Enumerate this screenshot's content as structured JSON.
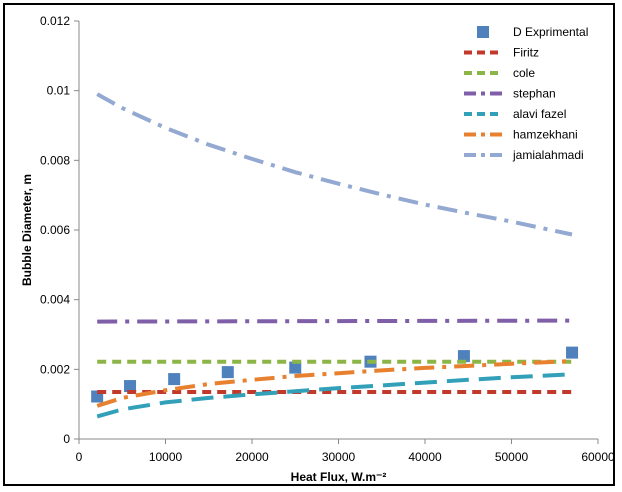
{
  "chart_data": {
    "type": "line",
    "xlabel": "Heat Flux, W.m⁻²",
    "ylabel": "Bubble Diameter, m",
    "xlim": [
      0,
      60000
    ],
    "ylim": [
      0,
      0.012
    ],
    "x_ticks": [
      0,
      10000,
      20000,
      30000,
      40000,
      50000,
      60000
    ],
    "x_tick_labels": [
      "0",
      "10000",
      "20000",
      "30000",
      "40000",
      "50000",
      "60000"
    ],
    "y_ticks": [
      0,
      0.002,
      0.004,
      0.006,
      0.008,
      0.01,
      0.012
    ],
    "y_tick_labels": [
      "0",
      "0.002",
      "0.004",
      "0.006",
      "0.008",
      "0.01",
      "0.012"
    ],
    "grid": false,
    "legend_position": "top-right",
    "series": [
      {
        "name": "D Exprimental",
        "kind": "markers",
        "color": "#4f81bd",
        "points": [
          [
            2100,
            0.00122
          ],
          [
            5900,
            0.00152
          ],
          [
            11000,
            0.00172
          ],
          [
            17200,
            0.00192
          ],
          [
            25000,
            0.00205
          ],
          [
            33700,
            0.00222
          ],
          [
            44500,
            0.00238
          ],
          [
            57000,
            0.00248
          ]
        ]
      },
      {
        "name": "Firitz",
        "kind": "line",
        "dash": "dash",
        "color": "#c0392b",
        "points": [
          [
            2100,
            0.00135
          ],
          [
            57000,
            0.00135
          ]
        ]
      },
      {
        "name": "cole",
        "kind": "line",
        "dash": "dash",
        "color": "#8cb548",
        "points": [
          [
            2100,
            0.00222
          ],
          [
            57000,
            0.00222
          ]
        ]
      },
      {
        "name": "stephan",
        "kind": "line",
        "dash": "dashdot",
        "color": "#7f5fa8",
        "points": [
          [
            2100,
            0.00337
          ],
          [
            57000,
            0.0034
          ]
        ]
      },
      {
        "name": "alavi fazel",
        "kind": "line",
        "dash": "longdash",
        "color": "#31a0b8",
        "points": [
          [
            2100,
            0.00065
          ],
          [
            5000,
            0.00085
          ],
          [
            10000,
            0.00105
          ],
          [
            15000,
            0.00118
          ],
          [
            20000,
            0.00128
          ],
          [
            25000,
            0.00137
          ],
          [
            30000,
            0.00146
          ],
          [
            35000,
            0.00154
          ],
          [
            40000,
            0.00162
          ],
          [
            45000,
            0.0017
          ],
          [
            50000,
            0.00177
          ],
          [
            57000,
            0.00186
          ]
        ]
      },
      {
        "name": "hamzekhani",
        "kind": "line",
        "dash": "dashdot",
        "color": "#e8812f",
        "points": [
          [
            2100,
            0.00095
          ],
          [
            5000,
            0.00118
          ],
          [
            10000,
            0.0014
          ],
          [
            15000,
            0.00158
          ],
          [
            20000,
            0.0017
          ],
          [
            25000,
            0.00181
          ],
          [
            30000,
            0.00189
          ],
          [
            35000,
            0.00197
          ],
          [
            40000,
            0.00204
          ],
          [
            45000,
            0.0021
          ],
          [
            50000,
            0.00216
          ],
          [
            57000,
            0.00224
          ]
        ]
      },
      {
        "name": "jamialahmadi",
        "kind": "line",
        "dash": "dashdot",
        "color": "#93a9d2",
        "points": [
          [
            2100,
            0.0099
          ],
          [
            5000,
            0.0095
          ],
          [
            10000,
            0.00893
          ],
          [
            15000,
            0.00845
          ],
          [
            20000,
            0.00804
          ],
          [
            25000,
            0.00766
          ],
          [
            30000,
            0.00733
          ],
          [
            35000,
            0.00702
          ],
          [
            40000,
            0.00673
          ],
          [
            45000,
            0.00648
          ],
          [
            50000,
            0.00624
          ],
          [
            57000,
            0.00587
          ]
        ]
      }
    ]
  }
}
